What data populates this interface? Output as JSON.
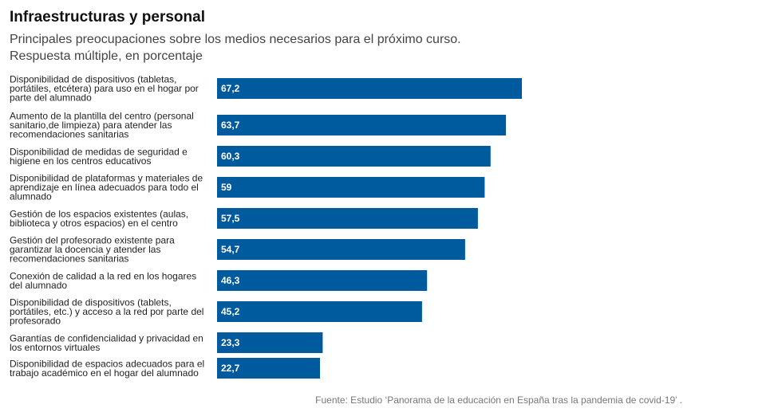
{
  "chart_data": {
    "type": "bar",
    "orientation": "horizontal",
    "title": "Infraestructuras y personal",
    "subtitle": "Principales preocupaciones sobre los medios necesarios para el próximo curso. Respuesta múltiple, en porcentaje",
    "categories": [
      [
        "Disponibilidad de dispositivos (tabletas,",
        "portátiles, etcétera) para uso en el hogar por",
        "parte del alumnado"
      ],
      [
        "Aumento de la plantilla del centro (personal",
        "sanitario,de limpieza) para atender las",
        "recomendaciones sanitarias"
      ],
      [
        "Disponibilidad de medidas de seguridad e",
        "higiene en los centros educativos"
      ],
      [
        "Disponibilidad de plataformas y materiales de",
        "aprendizaje en línea adecuados para todo el",
        "alumnado"
      ],
      [
        "Gestión de los espacios existentes (aulas,",
        "biblioteca y otros espacios) en el centro"
      ],
      [
        "Gestión del profesorado existente para",
        "garantizar la docencia y atender las",
        "recomendaciones sanitarias"
      ],
      [
        "Conexión de calidad a la red en los hogares",
        "del alumnado"
      ],
      [
        "Disponibilidad de dispositivos (tablets,",
        "portátiles, etc.) y acceso a la red por parte del",
        "profesorado"
      ],
      [
        "Garantías de confidencialidad y privacidad en",
        "los entornos virtuales"
      ],
      [
        "Disponibilidad de espacios adecuados para el",
        "trabajo académico en el hogar del alumnado"
      ]
    ],
    "values": [
      67.2,
      63.7,
      60.3,
      59,
      57.5,
      54.7,
      46.3,
      45.2,
      23.3,
      22.7
    ],
    "value_labels": [
      "67,2",
      "63,7",
      "60,3",
      "59",
      "57,5",
      "54,7",
      "46,3",
      "45,2",
      "23,3",
      "22,7"
    ],
    "xlim": [
      0,
      67.2
    ],
    "xlabel": "",
    "ylabel": "",
    "grid": false,
    "legend": "none",
    "bar_color": "#005a9e",
    "source": "Fuente: Estudio ‘Panorama de la educación en España tras la pandemia de covid-19’ ."
  }
}
